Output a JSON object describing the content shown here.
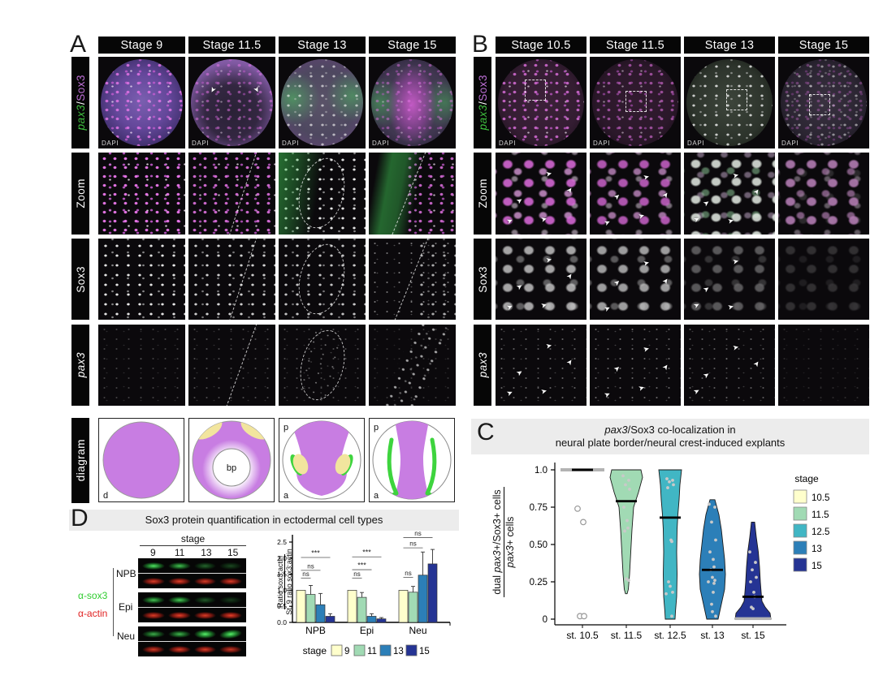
{
  "icons": {
    "arrow": "➤"
  },
  "panel_a": {
    "letter": "A",
    "col_headers": [
      "Stage 9",
      "Stage 11.5",
      "Stage 13",
      "Stage 15"
    ],
    "row1_label": {
      "gene": "pax3",
      "sep": "/",
      "protein": "Sox3",
      "gene_color": "#3fc13f",
      "protein_color": "#bd6fd6"
    },
    "row_labels": [
      "Zoom",
      "Sox3",
      "pax3",
      "diagram"
    ],
    "dapi_label": "DAPI",
    "diagram_colors": {
      "purple": "#c87de2",
      "yellow": "#f2e59e",
      "green": "#3ed43e"
    },
    "diagrams": {
      "stage9_corner": "d",
      "stage115_center": "bp",
      "stage13_top": "p",
      "stage13_bottom": "a",
      "stage15_top": "p",
      "stage15_bottom": "a"
    }
  },
  "panel_b": {
    "letter": "B",
    "col_headers": [
      "Stage 10.5",
      "Stage 11.5",
      "Stage 13",
      "Stage 15"
    ],
    "row1_label": {
      "gene": "pax3",
      "sep": "/",
      "protein": "Sox3"
    },
    "row_labels": [
      "Zoom",
      "Sox3",
      "pax3"
    ],
    "dapi_label": "DAPI"
  },
  "panel_c": {
    "letter": "C",
    "title": {
      "italic": "pax3",
      "rest": "/Sox3 co-localization in",
      "line2": "neural plate border/neural crest-induced explants"
    },
    "ylabel": {
      "num_pre": "dual ",
      "num_italic": "pax3",
      "num_post": "+/Sox3+ cells",
      "den_italic": "pax3",
      "den_post": "+ cells"
    },
    "chart_data": {
      "type": "violin",
      "yticks": [
        "1.0",
        "0.75",
        "0.50",
        "0.25",
        "0"
      ],
      "ytick_values": [
        1.0,
        0.75,
        0.5,
        0.25,
        0
      ],
      "ylim": [
        0,
        1.0
      ],
      "grid": false,
      "legend_position": "right",
      "categories": [
        "st. 10.5",
        "st. 11.5",
        "st. 12.5",
        "st. 13",
        "st. 15"
      ],
      "legend": {
        "title": "stage",
        "entries": [
          {
            "label": "10.5",
            "color": "#FFFFCC"
          },
          {
            "label": "11.5",
            "color": "#A1DAB4"
          },
          {
            "label": "12.5",
            "color": "#41B6C4"
          },
          {
            "label": "13",
            "color": "#2C7FB8"
          },
          {
            "label": "15",
            "color": "#253494"
          }
        ]
      },
      "violins": [
        {
          "category": "st. 10.5",
          "color": "#FFFFCC",
          "median": 1.0,
          "top_bar": 1.0,
          "open_points": true,
          "shape": [],
          "points": [
            0.74,
            0.65,
            0.02,
            0.02
          ]
        },
        {
          "category": "st. 11.5",
          "color": "#A1DAB4",
          "median": 0.79,
          "shape": [
            [
              1.0,
              18
            ],
            [
              0.95,
              20
            ],
            [
              0.85,
              15
            ],
            [
              0.75,
              9
            ],
            [
              0.6,
              7
            ],
            [
              0.45,
              5.5
            ],
            [
              0.3,
              4
            ],
            [
              0.2,
              2.5
            ],
            [
              0.17,
              1
            ]
          ],
          "points": [
            0.96,
            0.93,
            0.9,
            0.87,
            0.75,
            0.66,
            0.61,
            0.59,
            0.27,
            0.26
          ]
        },
        {
          "category": "st. 12.5",
          "color": "#41B6C4",
          "median": 0.68,
          "shape": [
            [
              1.0,
              14
            ],
            [
              0.9,
              12
            ],
            [
              0.8,
              11
            ],
            [
              0.7,
              9.5
            ],
            [
              0.6,
              8.5
            ],
            [
              0.45,
              8
            ],
            [
              0.3,
              8.5
            ],
            [
              0.15,
              8
            ],
            [
              0.05,
              6.5
            ],
            [
              0.0,
              6
            ]
          ],
          "points": [
            0.94,
            0.93,
            0.92,
            0.9,
            0.88,
            0.53,
            0.52,
            0.25,
            0.22,
            0.18,
            0.17,
            0.02
          ]
        },
        {
          "category": "st. 13",
          "color": "#2C7FB8",
          "median": 0.33,
          "shape": [
            [
              0.8,
              3
            ],
            [
              0.7,
              8
            ],
            [
              0.6,
              11
            ],
            [
              0.5,
              13
            ],
            [
              0.4,
              15
            ],
            [
              0.3,
              16
            ],
            [
              0.2,
              15
            ],
            [
              0.1,
              11
            ],
            [
              0.0,
              7
            ]
          ],
          "points": [
            0.77,
            0.75,
            0.65,
            0.53,
            0.45,
            0.4,
            0.35,
            0.33,
            0.28,
            0.26,
            0.25,
            0.24,
            0.18,
            0.1,
            0.05,
            0.02
          ]
        },
        {
          "category": "st. 15",
          "color": "#253494",
          "median": 0.15,
          "base_bar": 0.005,
          "shape": [
            [
              0.65,
              2
            ],
            [
              0.55,
              4
            ],
            [
              0.45,
              6.5
            ],
            [
              0.35,
              8
            ],
            [
              0.25,
              9
            ],
            [
              0.18,
              10
            ],
            [
              0.12,
              11
            ],
            [
              0.08,
              15
            ],
            [
              0.04,
              21
            ],
            [
              0.0,
              22
            ]
          ],
          "points": [
            0.45,
            0.38,
            0.33,
            0.28,
            0.25,
            0.18,
            0.15,
            0.08,
            0.07
          ]
        }
      ]
    }
  },
  "panel_d": {
    "letter": "D",
    "title": "Sox3 protein quantification in ectodermal cell types",
    "blot": {
      "stage_header": "stage",
      "stages": [
        "9",
        "11",
        "13",
        "15"
      ],
      "rows": [
        "NPB",
        "Epi",
        "Neu"
      ],
      "green_label": "α-sox3",
      "red_label": "α-actin",
      "green_color": "#2ecc2e",
      "red_color": "#e02020",
      "green_intensity": [
        [
          0.95,
          0.8,
          0.4,
          0.28
        ],
        [
          0.8,
          0.85,
          0.35,
          0.22
        ],
        [
          0.7,
          0.75,
          1.0,
          1.0
        ]
      ],
      "red_intensity": [
        [
          0.9,
          0.92,
          0.88,
          0.9
        ],
        [
          0.9,
          0.95,
          0.9,
          0.95
        ],
        [
          0.85,
          0.9,
          0.9,
          0.82
        ]
      ]
    },
    "chart_data": {
      "type": "bar",
      "ylabel": {
        "num": "Ratio sox3:actin",
        "den": "St. 9 ratio sox3:actin"
      },
      "yticks": [
        "0.0",
        "0.5",
        "1.0",
        "1.5",
        "2.0",
        "2.5"
      ],
      "ytick_values": [
        0,
        0.5,
        1.0,
        1.5,
        2.0,
        2.5
      ],
      "ylim": [
        0,
        2.5
      ],
      "grid": false,
      "groups": [
        "NPB",
        "Epi",
        "Neu"
      ],
      "stage_labels": [
        "9",
        "11",
        "13",
        "15"
      ],
      "colors": [
        "#FFFFCC",
        "#A1DAB4",
        "#2C7FB8",
        "#253494"
      ],
      "values": [
        [
          1.0,
          0.87,
          0.55,
          0.19
        ],
        [
          1.0,
          0.78,
          0.19,
          0.11
        ],
        [
          1.0,
          0.94,
          1.47,
          1.82
        ]
      ],
      "errors": [
        [
          0,
          0.28,
          0.35,
          0.08
        ],
        [
          0,
          0.15,
          0.08,
          0.04
        ],
        [
          0,
          0.18,
          0.72,
          0.45
        ]
      ],
      "sig": [
        [
          {
            "to": 1,
            "label": "ns",
            "y": 1.38
          },
          {
            "to": 2,
            "label": "ns",
            "y": 1.62
          },
          {
            "to": 3,
            "label": "***",
            "y": 2.02
          }
        ],
        [
          {
            "to": 1,
            "label": "ns",
            "y": 1.38
          },
          {
            "to": 2,
            "label": "***",
            "y": 1.64
          },
          {
            "to": 3,
            "label": "***",
            "y": 2.04
          }
        ],
        [
          {
            "to": 1,
            "label": "ns",
            "y": 1.4
          },
          {
            "to": 2,
            "label": "ns",
            "y": 2.32
          },
          {
            "to": 3,
            "label": "ns",
            "y": 2.64
          }
        ]
      ],
      "legend": {
        "title": "stage",
        "entries": [
          "9",
          "11",
          "13",
          "15"
        ]
      }
    }
  }
}
